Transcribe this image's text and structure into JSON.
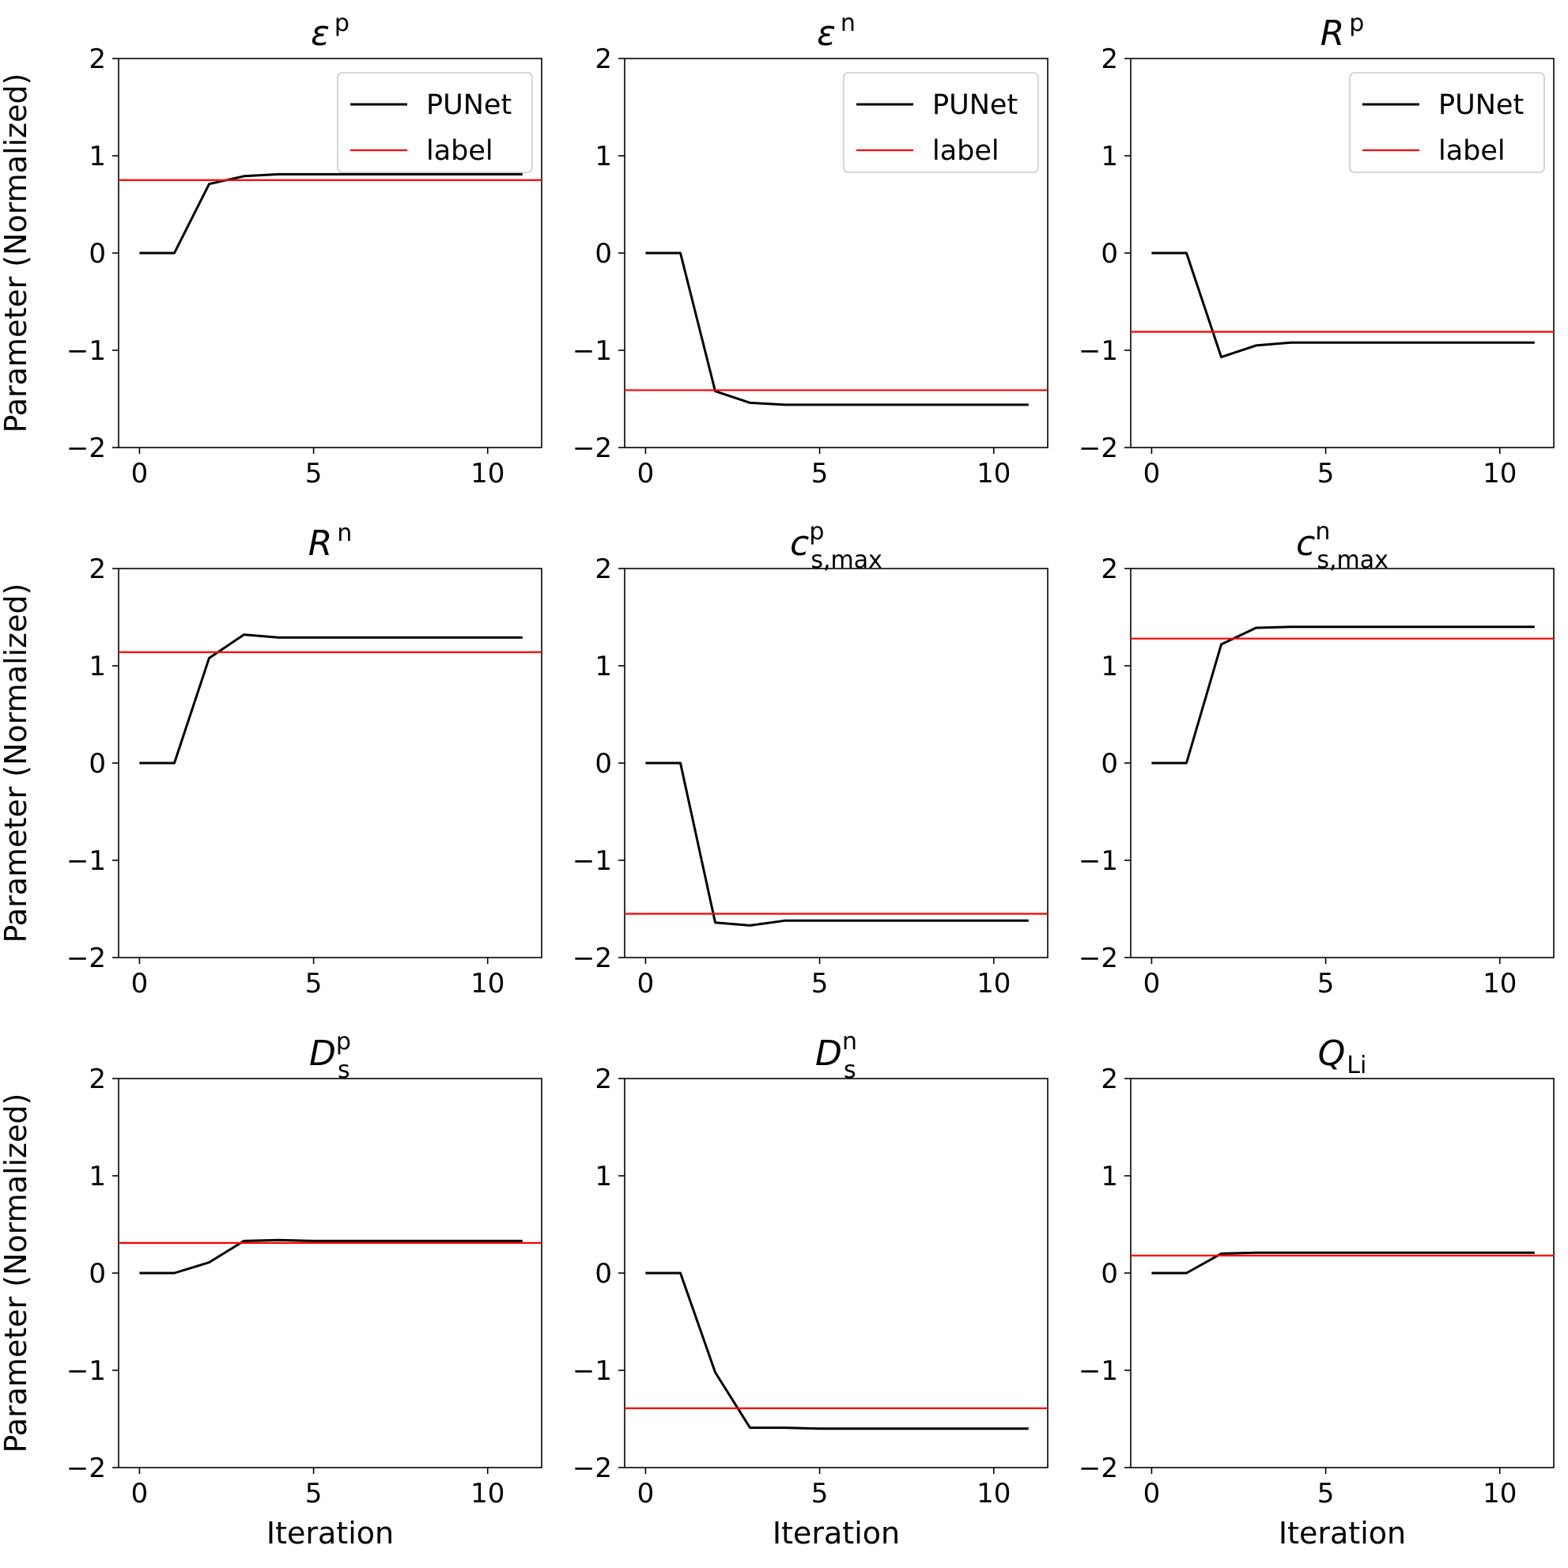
{
  "chart_data": [
    {
      "type": "line",
      "title_main": "ε",
      "title_sup": "p",
      "title_sub": "",
      "xlabel": "",
      "ylabel": "Parameter (Normalized)",
      "xlim": [
        -0.6,
        11.55
      ],
      "ylim": [
        -2,
        2
      ],
      "xticks": [
        0,
        5,
        10
      ],
      "xtick_labels": [
        "0",
        "5",
        "10"
      ],
      "yticks": [
        -2,
        -1,
        0,
        1,
        2
      ],
      "ytick_labels": [
        "−2",
        "−1",
        "0",
        "1",
        "2"
      ],
      "legend": {
        "show": true,
        "placement": "upper-right",
        "entries": [
          "PUNet",
          "label"
        ]
      },
      "series": [
        {
          "name": "PUNet",
          "color": "#000000",
          "x": [
            0,
            1,
            2,
            3,
            4,
            5,
            6,
            7,
            8,
            9,
            10,
            11
          ],
          "values": [
            0,
            0,
            0.71,
            0.79,
            0.81,
            0.81,
            0.81,
            0.81,
            0.81,
            0.81,
            0.81,
            0.81
          ]
        },
        {
          "name": "label",
          "color": "#ff0000",
          "kind": "hline",
          "value": 0.75
        }
      ]
    },
    {
      "type": "line",
      "title_main": "ε",
      "title_sup": "n",
      "title_sub": "",
      "xlabel": "",
      "ylabel": "",
      "xlim": [
        -0.6,
        11.55
      ],
      "ylim": [
        -2,
        2
      ],
      "xticks": [
        0,
        5,
        10
      ],
      "xtick_labels": [
        "0",
        "5",
        "10"
      ],
      "yticks": [
        -2,
        -1,
        0,
        1,
        2
      ],
      "ytick_labels": [
        "−2",
        "−1",
        "0",
        "1",
        "2"
      ],
      "legend": {
        "show": true,
        "placement": "upper-right",
        "entries": [
          "PUNet",
          "label"
        ]
      },
      "series": [
        {
          "name": "PUNet",
          "color": "#000000",
          "x": [
            0,
            1,
            2,
            3,
            4,
            5,
            6,
            7,
            8,
            9,
            10,
            11
          ],
          "values": [
            0,
            0,
            -1.42,
            -1.54,
            -1.56,
            -1.56,
            -1.56,
            -1.56,
            -1.56,
            -1.56,
            -1.56,
            -1.56
          ]
        },
        {
          "name": "label",
          "color": "#ff0000",
          "kind": "hline",
          "value": -1.41
        }
      ]
    },
    {
      "type": "line",
      "title_main": "R",
      "title_sup": "p",
      "title_sub": "",
      "xlabel": "",
      "ylabel": "",
      "xlim": [
        -0.6,
        11.55
      ],
      "ylim": [
        -2,
        2
      ],
      "xticks": [
        0,
        5,
        10
      ],
      "xtick_labels": [
        "0",
        "5",
        "10"
      ],
      "yticks": [
        -2,
        -1,
        0,
        1,
        2
      ],
      "ytick_labels": [
        "−2",
        "−1",
        "0",
        "1",
        "2"
      ],
      "legend": {
        "show": true,
        "placement": "upper-right",
        "entries": [
          "PUNet",
          "label"
        ]
      },
      "series": [
        {
          "name": "PUNet",
          "color": "#000000",
          "x": [
            0,
            1,
            2,
            3,
            4,
            5,
            6,
            7,
            8,
            9,
            10,
            11
          ],
          "values": [
            0,
            0,
            -1.07,
            -0.95,
            -0.92,
            -0.92,
            -0.92,
            -0.92,
            -0.92,
            -0.92,
            -0.92,
            -0.92
          ]
        },
        {
          "name": "label",
          "color": "#ff0000",
          "kind": "hline",
          "value": -0.81
        }
      ]
    },
    {
      "type": "line",
      "title_main": "R",
      "title_sup": "n",
      "title_sub": "",
      "xlabel": "",
      "ylabel": "Parameter (Normalized)",
      "xlim": [
        -0.6,
        11.55
      ],
      "ylim": [
        -2,
        2
      ],
      "xticks": [
        0,
        5,
        10
      ],
      "xtick_labels": [
        "0",
        "5",
        "10"
      ],
      "yticks": [
        -2,
        -1,
        0,
        1,
        2
      ],
      "ytick_labels": [
        "−2",
        "−1",
        "0",
        "1",
        "2"
      ],
      "legend": {
        "show": false
      },
      "series": [
        {
          "name": "PUNet",
          "color": "#000000",
          "x": [
            0,
            1,
            2,
            3,
            4,
            5,
            6,
            7,
            8,
            9,
            10,
            11
          ],
          "values": [
            0,
            0,
            1.08,
            1.32,
            1.29,
            1.29,
            1.29,
            1.29,
            1.29,
            1.29,
            1.29,
            1.29
          ]
        },
        {
          "name": "label",
          "color": "#ff0000",
          "kind": "hline",
          "value": 1.14
        }
      ]
    },
    {
      "type": "line",
      "title_main": "c",
      "title_sup": "p",
      "title_sub": "s,max",
      "xlabel": "",
      "ylabel": "",
      "xlim": [
        -0.6,
        11.55
      ],
      "ylim": [
        -2,
        2
      ],
      "xticks": [
        0,
        5,
        10
      ],
      "xtick_labels": [
        "0",
        "5",
        "10"
      ],
      "yticks": [
        -2,
        -1,
        0,
        1,
        2
      ],
      "ytick_labels": [
        "−2",
        "−1",
        "0",
        "1",
        "2"
      ],
      "legend": {
        "show": false
      },
      "series": [
        {
          "name": "PUNet",
          "color": "#000000",
          "x": [
            0,
            1,
            2,
            3,
            4,
            5,
            6,
            7,
            8,
            9,
            10,
            11
          ],
          "values": [
            0,
            0,
            -1.64,
            -1.67,
            -1.62,
            -1.62,
            -1.62,
            -1.62,
            -1.62,
            -1.62,
            -1.62,
            -1.62
          ]
        },
        {
          "name": "label",
          "color": "#ff0000",
          "kind": "hline",
          "value": -1.55
        }
      ]
    },
    {
      "type": "line",
      "title_main": "c",
      "title_sup": "n",
      "title_sub": "s,max",
      "xlabel": "",
      "ylabel": "",
      "xlim": [
        -0.6,
        11.55
      ],
      "ylim": [
        -2,
        2
      ],
      "xticks": [
        0,
        5,
        10
      ],
      "xtick_labels": [
        "0",
        "5",
        "10"
      ],
      "yticks": [
        -2,
        -1,
        0,
        1,
        2
      ],
      "ytick_labels": [
        "−2",
        "−1",
        "0",
        "1",
        "2"
      ],
      "legend": {
        "show": false
      },
      "series": [
        {
          "name": "PUNet",
          "color": "#000000",
          "x": [
            0,
            1,
            2,
            3,
            4,
            5,
            6,
            7,
            8,
            9,
            10,
            11
          ],
          "values": [
            0,
            0,
            1.22,
            1.39,
            1.4,
            1.4,
            1.4,
            1.4,
            1.4,
            1.4,
            1.4,
            1.4
          ]
        },
        {
          "name": "label",
          "color": "#ff0000",
          "kind": "hline",
          "value": 1.28
        }
      ]
    },
    {
      "type": "line",
      "title_main": "D",
      "title_sup": "p",
      "title_sub": "s",
      "xlabel": "Iteration",
      "ylabel": "Parameter (Normalized)",
      "xlim": [
        -0.6,
        11.55
      ],
      "ylim": [
        -2,
        2
      ],
      "xticks": [
        0,
        5,
        10
      ],
      "xtick_labels": [
        "0",
        "5",
        "10"
      ],
      "yticks": [
        -2,
        -1,
        0,
        1,
        2
      ],
      "ytick_labels": [
        "−2",
        "−1",
        "0",
        "1",
        "2"
      ],
      "legend": {
        "show": false
      },
      "series": [
        {
          "name": "PUNet",
          "color": "#000000",
          "x": [
            0,
            1,
            2,
            3,
            4,
            5,
            6,
            7,
            8,
            9,
            10,
            11
          ],
          "values": [
            0,
            0,
            0.11,
            0.33,
            0.34,
            0.33,
            0.33,
            0.33,
            0.33,
            0.33,
            0.33,
            0.33
          ]
        },
        {
          "name": "label",
          "color": "#ff0000",
          "kind": "hline",
          "value": 0.31
        }
      ]
    },
    {
      "type": "line",
      "title_main": "D",
      "title_sup": "n",
      "title_sub": "s",
      "xlabel": "Iteration",
      "ylabel": "",
      "xlim": [
        -0.6,
        11.55
      ],
      "ylim": [
        -2,
        2
      ],
      "xticks": [
        0,
        5,
        10
      ],
      "xtick_labels": [
        "0",
        "5",
        "10"
      ],
      "yticks": [
        -2,
        -1,
        0,
        1,
        2
      ],
      "ytick_labels": [
        "−2",
        "−1",
        "0",
        "1",
        "2"
      ],
      "legend": {
        "show": false
      },
      "series": [
        {
          "name": "PUNet",
          "color": "#000000",
          "x": [
            0,
            1,
            2,
            3,
            4,
            5,
            6,
            7,
            8,
            9,
            10,
            11
          ],
          "values": [
            0,
            0,
            -1.02,
            -1.59,
            -1.59,
            -1.6,
            -1.6,
            -1.6,
            -1.6,
            -1.6,
            -1.6,
            -1.6
          ]
        },
        {
          "name": "label",
          "color": "#ff0000",
          "kind": "hline",
          "value": -1.39
        }
      ]
    },
    {
      "type": "line",
      "title_main": "Q",
      "title_sup": "",
      "title_sub": "Li",
      "xlabel": "Iteration",
      "ylabel": "",
      "xlim": [
        -0.6,
        11.55
      ],
      "ylim": [
        -2,
        2
      ],
      "xticks": [
        0,
        5,
        10
      ],
      "xtick_labels": [
        "0",
        "5",
        "10"
      ],
      "yticks": [
        -2,
        -1,
        0,
        1,
        2
      ],
      "ytick_labels": [
        "−2",
        "−1",
        "0",
        "1",
        "2"
      ],
      "legend": {
        "show": false
      },
      "series": [
        {
          "name": "PUNet",
          "color": "#000000",
          "x": [
            0,
            1,
            2,
            3,
            4,
            5,
            6,
            7,
            8,
            9,
            10,
            11
          ],
          "values": [
            0,
            0,
            0.2,
            0.21,
            0.21,
            0.21,
            0.21,
            0.21,
            0.21,
            0.21,
            0.21,
            0.21
          ]
        },
        {
          "name": "label",
          "color": "#ff0000",
          "kind": "hline",
          "value": 0.18
        }
      ]
    }
  ]
}
